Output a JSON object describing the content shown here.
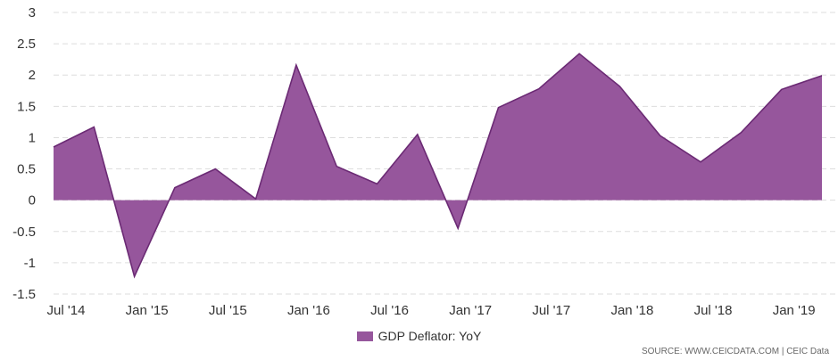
{
  "chart_data": {
    "type": "area",
    "categories": [
      "Jul '14",
      "",
      "Jan '15",
      "",
      "Jul '15",
      "",
      "Jan '16",
      "",
      "Jul '16",
      "",
      "Jan '17",
      "",
      "Jul '17",
      "",
      "Jan '18",
      "",
      "Jul '18",
      "",
      "Jan '19",
      ""
    ],
    "x_tick_labels": [
      "Jul '14",
      "Jan '15",
      "Jul '15",
      "Jan '16",
      "Jul '16",
      "Jan '17",
      "Jul '17",
      "Jan '18",
      "Jul '18",
      "Jan '19"
    ],
    "series": [
      {
        "name": "GDP Deflator: YoY",
        "values": [
          0.85,
          1.17,
          -1.22,
          0.2,
          0.5,
          0.02,
          2.16,
          0.54,
          0.26,
          1.05,
          -0.45,
          1.48,
          1.78,
          2.34,
          1.82,
          1.03,
          0.61,
          1.08,
          1.77,
          1.99
        ]
      }
    ],
    "y_ticks": [
      "3",
      "2.5",
      "2",
      "1.5",
      "1",
      "0.5",
      "0",
      "-0.5",
      "-1",
      "-1.5"
    ],
    "ylim": [
      -1.5,
      3
    ],
    "grid": true,
    "legend_position": "bottom-center",
    "colors": {
      "fill": "#96569c",
      "line": "#6b2a74",
      "grid": "#dddddd"
    }
  },
  "legend": {
    "label": "GDP Deflator: YoY"
  },
  "source_text": "SOURCE: WWW.CEICDATA.COM | CEIC Data"
}
